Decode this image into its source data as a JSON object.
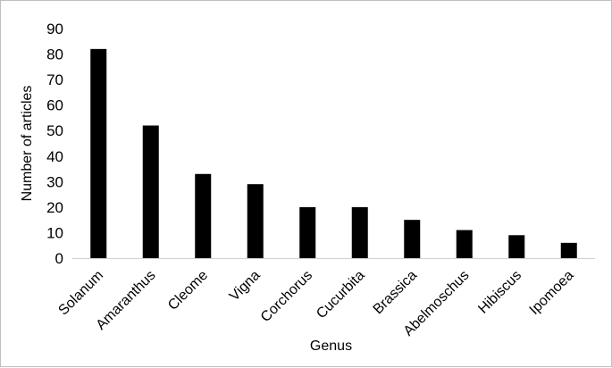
{
  "chart_data": {
    "type": "bar",
    "title": "",
    "xlabel": "Genus",
    "ylabel": "Number of articles",
    "categories": [
      "Solanum",
      "Amaranthus",
      "Cleome",
      "Vigna",
      "Corchorus",
      "Cucurbita",
      "Brassica",
      "Abelmoschus",
      "Hibiscus",
      "Ipomoea"
    ],
    "values": [
      82,
      52,
      33,
      29,
      20,
      20,
      15,
      11,
      9,
      6
    ],
    "ylim": [
      0,
      90
    ],
    "yticks": [
      0,
      10,
      20,
      30,
      40,
      50,
      60,
      70,
      80,
      90
    ],
    "grid": false,
    "legend": "none",
    "bar_color": "#000000"
  }
}
